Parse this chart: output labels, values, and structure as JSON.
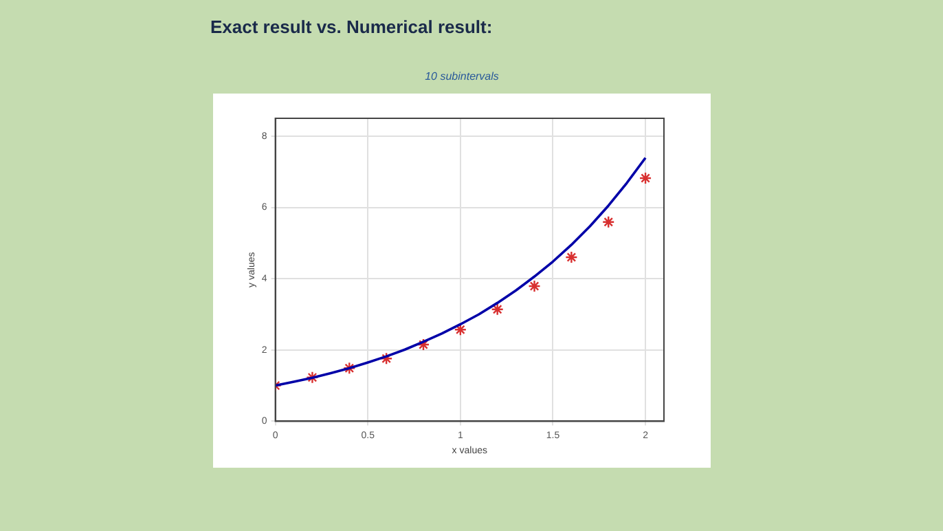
{
  "chart_data": {
    "type": "line",
    "title": "Exact result vs. Numerical result:",
    "subtitle": "10 subintervals",
    "xlabel": "x values",
    "ylabel": "y values",
    "xlim": [
      0,
      2.1
    ],
    "ylim": [
      0,
      8.5
    ],
    "xticks": [
      0,
      0.5,
      1,
      1.5,
      2
    ],
    "yticks": [
      0,
      2,
      4,
      6,
      8
    ],
    "grid": true,
    "legend": false,
    "series": [
      {
        "color": "#0000a8",
        "marker": "none",
        "line_style": "solid",
        "x": [
          0,
          0.1,
          0.2,
          0.3,
          0.4,
          0.5,
          0.6,
          0.7,
          0.8,
          0.9,
          1,
          1.1,
          1.2,
          1.3,
          1.4,
          1.5,
          1.6,
          1.7,
          1.8,
          1.9,
          2
        ],
        "values": [
          1,
          1.11,
          1.22,
          1.35,
          1.49,
          1.65,
          1.82,
          2.01,
          2.23,
          2.46,
          2.72,
          3,
          3.32,
          3.67,
          4.06,
          4.48,
          4.95,
          5.47,
          6.05,
          6.69,
          7.39
        ]
      },
      {
        "type": "scatter",
        "color": "#d83030",
        "marker": "cross",
        "x": [
          0,
          0.2,
          0.4,
          0.6,
          0.8,
          1,
          1.2,
          1.4,
          1.6,
          1.8,
          2
        ],
        "values": [
          1,
          1.23,
          1.49,
          1.76,
          2.15,
          2.57,
          3.14,
          3.79,
          4.6,
          5.59,
          6.82
        ]
      }
    ]
  }
}
